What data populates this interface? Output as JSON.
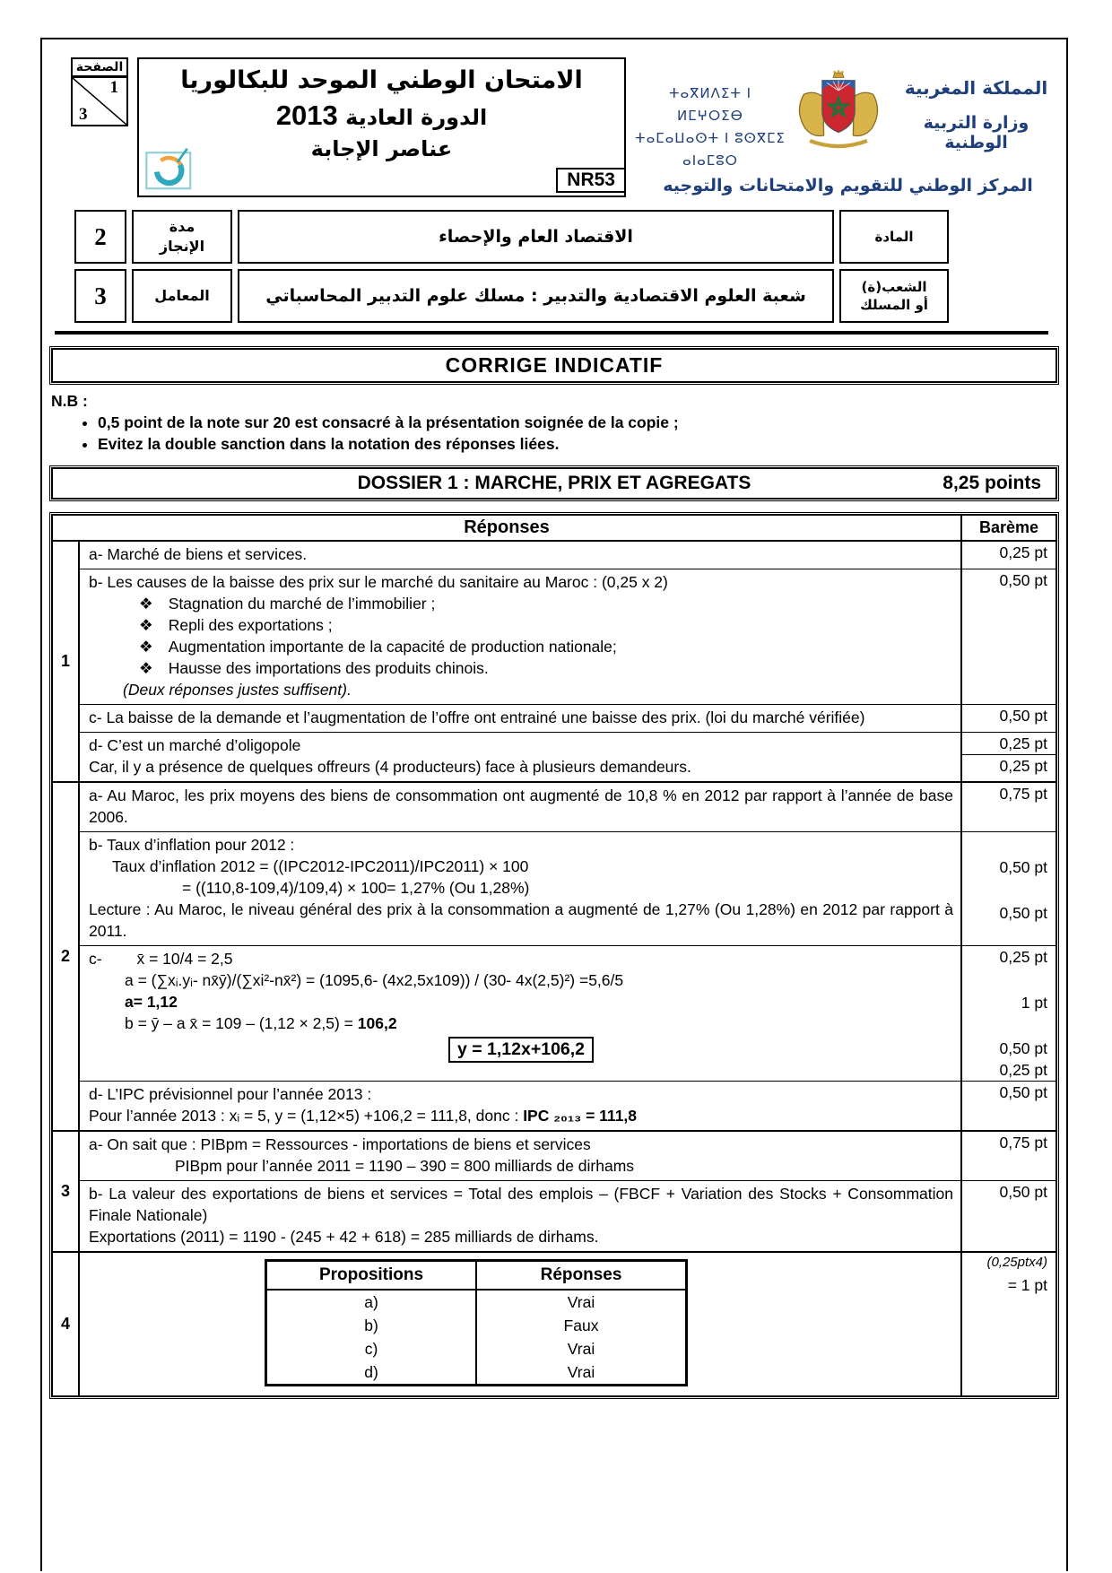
{
  "header": {
    "page_box": {
      "label": "الصفحة",
      "current": "1",
      "total": "3"
    },
    "title_ar": "الامتحان الوطني الموحد للبكالوريا",
    "session_ar": "الدورة العادية",
    "session_year": "2013",
    "subtitle_ar": "عناصر الإجابة",
    "exam_code": "NR53",
    "kingdom_ar": "المملكة المغربية",
    "ministry_ar": "وزارة التربية الوطنية",
    "tifinagh_line1": "ⵜⴰⴳⵍⴷⵉⵜ ⵏ ⵍⵎⵖⵔⵉⴱ",
    "tifinagh_line2": "ⵜⴰⵎⴰⵡⴰⵙⵜ ⵏ ⵓⵙⴳⵎⵉ",
    "tifinagh_line3": "ⴰⵏⴰⵎⵓⵔ",
    "center_ar": "المركز الوطني للتقويم والامتحانات والتوجيه"
  },
  "info_table": {
    "rows": [
      {
        "value": "2",
        "label_ar": "مدة\nالإنجاز",
        "content_ar": "الاقتصاد العام والإحصاء",
        "side_ar": "المادة"
      },
      {
        "value": "3",
        "label_ar": "المعامل",
        "content_ar": "شعبة العلوم الاقتصادية والتدبير : مسلك علوم التدبير المحاسباتي",
        "side_ar": "الشعب(ة)\nأو المسلك"
      }
    ]
  },
  "corrige_title": "CORRIGE   INDICATIF",
  "nb": {
    "label": "N.B :",
    "items": [
      "0,5 point de la note sur 20 est consacré à la présentation soignée de la copie ;",
      "Evitez la double sanction dans la notation des réponses liées."
    ]
  },
  "dossier": {
    "title": "DOSSIER  1 : MARCHE, PRIX  ET AGREGATS",
    "points": "8,25 points"
  },
  "answers_table": {
    "bullet_glyph": "❖",
    "header": {
      "reponses": "Réponses",
      "bareme": "Barème"
    },
    "questions": [
      {
        "num": "1",
        "rows": [
          {
            "lines": [
              {
                "t": "a- Marché de biens et services."
              }
            ],
            "bareme": [
              "0,25 pt"
            ]
          },
          {
            "lines": [
              {
                "t": "b- Les causes de la baisse des prix sur le marché du sanitaire au Maroc : (0,25 x 2)"
              },
              {
                "t": "Stagnation du marché de l’immobilier ;",
                "cls": "bullet"
              },
              {
                "t": "Repli des exportations ;",
                "cls": "bullet"
              },
              {
                "t": "Augmentation importante de la capacité de production nationale;",
                "cls": "bullet"
              },
              {
                "t": "Hausse des importations des produits chinois.",
                "cls": "bullet"
              },
              {
                "t": "(Deux réponses justes suffisent).",
                "cls": "italic indent-deux"
              }
            ],
            "bareme": [
              "0,50 pt"
            ]
          },
          {
            "lines": [
              {
                "t": "c- La baisse de la demande et l’augmentation de l’offre ont entrainé une baisse des prix. (loi du marché vérifiée)",
                "cls": "justify"
              }
            ],
            "bareme": [
              "0,50 pt"
            ]
          },
          {
            "lines": [
              {
                "t": "d- C’est un marché d’oligopole"
              },
              {
                "t": "Car, il y a présence de quelques offreurs (4 producteurs) face à plusieurs demandeurs."
              }
            ],
            "bareme": [
              {
                "t": "0,25 pt"
              },
              {
                "t": "0,25 pt",
                "cls": "divided"
              }
            ]
          }
        ]
      },
      {
        "num": "2",
        "rows": [
          {
            "lines": [
              {
                "t": "a- Au Maroc, les prix moyens des biens de consommation ont augmenté de 10,8 % en 2012 par rapport à l’année de base 2006.",
                "cls": "justify"
              }
            ],
            "bareme": [
              "0,75 pt"
            ]
          },
          {
            "lines": [
              {
                "t": "b- Taux d’inflation pour 2012 :"
              },
              {
                "t": "Taux d’inflation 2012 = ((IPC2012-IPC2011)/IPC2011) × 100",
                "cls": "indent-sm"
              },
              {
                "t": "= ((110,8-109,4)/109,4) × 100= 1,27% (Ou 1,28%)",
                "cls": "indent-lg"
              },
              {
                "t": "Lecture : Au Maroc, le niveau général des prix à  la consommation a augmenté de 1,27% (Ou 1,28%) en 2012 par rapport à 2011.",
                "cls": "justify"
              }
            ],
            "bareme": [
              "",
              "0,50 pt",
              "",
              "0,50 pt"
            ]
          },
          {
            "lines": [
              {
                "t": "c-        x̄ = 10/4 = 2,5"
              },
              {
                "t": "a =  (∑xᵢ.yᵢ- nx̄ȳ)/(∑xi²-nx̄²) = (1095,6- (4x2,5x109)) / (30- 4x(2,5)²) =5,6/5",
                "cls": "indent-form"
              },
              {
                "t": "a= 1,12",
                "cls": "bold indent-form"
              },
              {
                "parts": [
                  {
                    "t": "b = ȳ – a x̄ = 109 – (1,12 × 2,5) = "
                  },
                  {
                    "t": "106,2",
                    "cls": "bold"
                  }
                ],
                "cls": "indent-form"
              },
              {
                "t": "y = 1,12x+106,2",
                "cls": "boxed"
              }
            ],
            "bareme": [
              "0,25 pt",
              "",
              "1 pt",
              "",
              "0,50 pt",
              "0,25 pt"
            ]
          },
          {
            "lines": [
              {
                "t": "d- L’IPC prévisionnel pour  l’année 2013 :"
              },
              {
                "parts": [
                  {
                    "t": "Pour l’année 2013 : xᵢ = 5, y = (1,12×5) +106,2 = 111,8, donc : "
                  },
                  {
                    "t": "IPC ₂₀₁₃ = 111,8",
                    "cls": "bold"
                  }
                ]
              }
            ],
            "bareme": [
              "0,50 pt"
            ]
          }
        ]
      },
      {
        "num": "3",
        "rows": [
          {
            "lines": [
              {
                "t": "a-  On sait que : PIBpm = Ressources - importations de biens et services"
              },
              {
                "t": "PIBpm pour l’année 2011 = 1190 – 390 = 800 milliards de dirhams",
                "cls": "indent-md"
              }
            ],
            "bareme": [
              "0,75 pt"
            ]
          },
          {
            "lines": [
              {
                "t": "b- La valeur des exportations de biens et services = Total des emplois – (FBCF + Variation des  Stocks + Consommation Finale Nationale)",
                "cls": "justify"
              },
              {
                "t": "Exportations (2011) = 1190 - (245 + 42 + 618) = 285 milliards de dirhams."
              }
            ],
            "bareme": [
              "0,50 pt"
            ]
          }
        ]
      },
      {
        "num": "4",
        "rows": [
          {
            "inner_table": {
              "headers": [
                "Propositions",
                "Réponses"
              ],
              "rows": [
                [
                  "a)",
                  "Vrai"
                ],
                [
                  "b)",
                  "Faux"
                ],
                [
                  "c)",
                  "Vrai"
                ],
                [
                  "d)",
                  "Vrai"
                ]
              ]
            },
            "bareme": [
              {
                "t": "(0,25ptx4)",
                "cls": "italic small"
              },
              {
                "t": "= 1 pt"
              }
            ]
          }
        ]
      }
    ]
  }
}
